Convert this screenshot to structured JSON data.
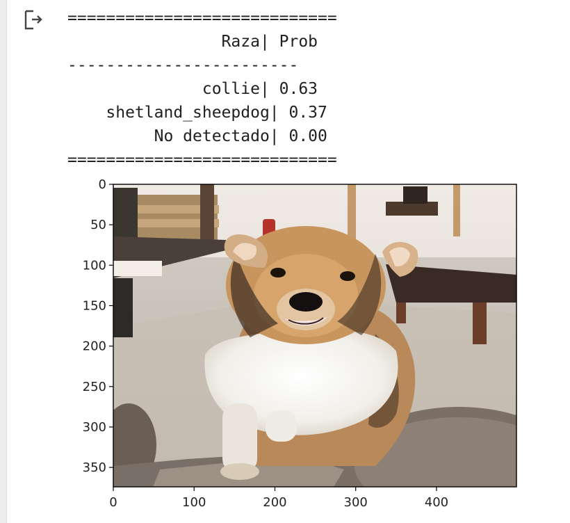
{
  "output_icon": "output-arrow-icon",
  "table": {
    "separator_top": "============================",
    "header": "                Raza| Prob",
    "separator_mid": "------------------------",
    "rows": [
      "              collie| 0.63",
      "    shetland_sheepdog| 0.37",
      "         No detectado| 0.00"
    ],
    "separator_bottom": "============================"
  },
  "figure": {
    "image_subject": "collie-dog-photo",
    "x_ticks": [
      0,
      100,
      200,
      300,
      400
    ],
    "y_ticks": [
      0,
      50,
      100,
      150,
      200,
      250,
      300,
      350
    ],
    "x_range": [
      0,
      499
    ],
    "y_range": [
      374,
      0
    ]
  },
  "x_tick_labels": [
    "0",
    "100",
    "200",
    "300",
    "400"
  ],
  "y_tick_labels": [
    "0",
    "50",
    "100",
    "150",
    "200",
    "250",
    "300",
    "350"
  ]
}
